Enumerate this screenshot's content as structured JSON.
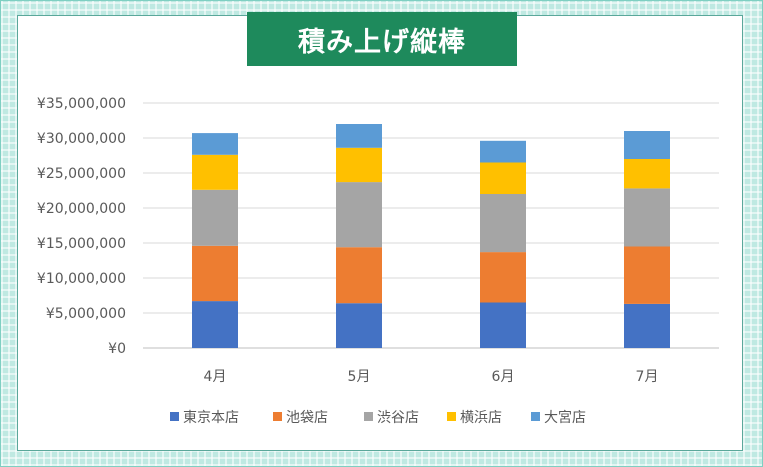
{
  "chart_data": {
    "type": "bar",
    "stacked": true,
    "title": "積み上げ縦棒",
    "categories": [
      "4月",
      "5月",
      "6月",
      "7月"
    ],
    "series": [
      {
        "name": "東京本店",
        "color": "#4472c4",
        "values": [
          6700000,
          6400000,
          6500000,
          6300000
        ]
      },
      {
        "name": "池袋店",
        "color": "#ed7d31",
        "values": [
          7900000,
          8000000,
          7200000,
          8200000
        ]
      },
      {
        "name": "渋谷店",
        "color": "#a5a5a5",
        "values": [
          8000000,
          9300000,
          8300000,
          8300000
        ]
      },
      {
        "name": "横浜店",
        "color": "#ffc000",
        "values": [
          5000000,
          4900000,
          4500000,
          4200000
        ]
      },
      {
        "name": "大宮店",
        "color": "#5b9bd5",
        "values": [
          3100000,
          3400000,
          3100000,
          4000000
        ]
      }
    ],
    "ylim": [
      0,
      35000000
    ],
    "yticks": [
      "¥0",
      "¥5,000,000",
      "¥10,000,000",
      "¥15,000,000",
      "¥20,000,000",
      "¥25,000,000",
      "¥30,000,000",
      "¥35,000,000"
    ],
    "grid": true,
    "legend_position": "bottom"
  }
}
